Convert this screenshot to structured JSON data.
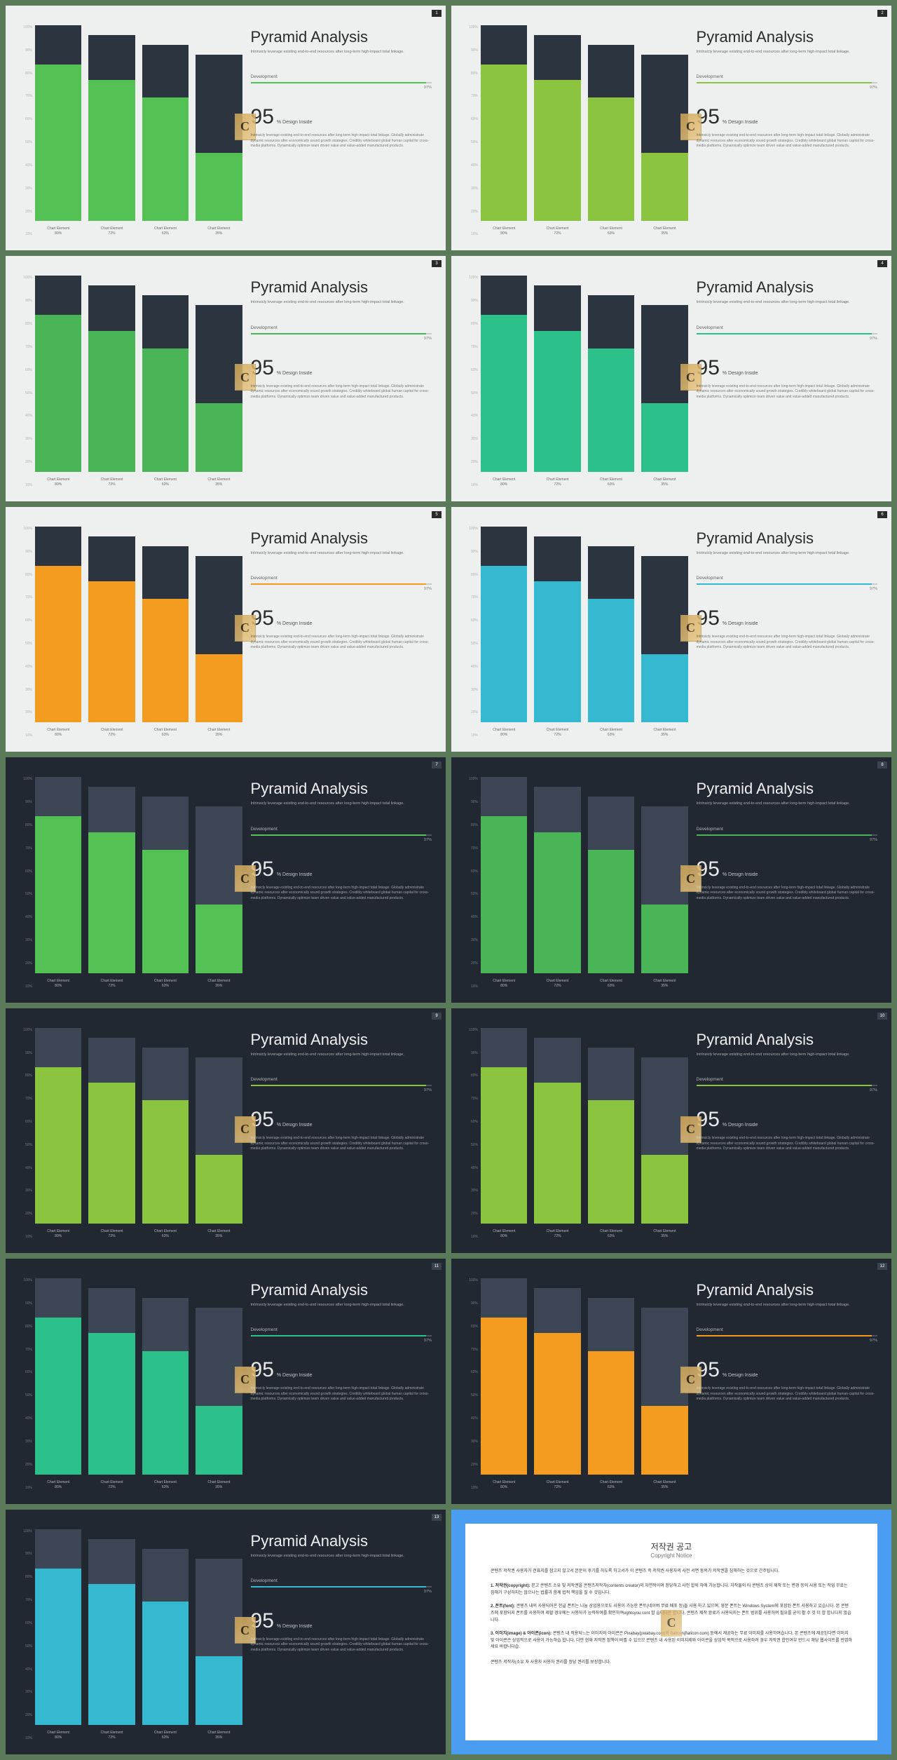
{
  "common": {
    "title": "Pyramid Analysis",
    "subtitle": "Intrinsicly leverage existing end-to-end resources after long-term high-impact total linkage.",
    "dev_label": "Development",
    "progress_pct": "97%",
    "progress_value": 97,
    "big_number": "95",
    "big_suffix": "% Design Inside",
    "body_text": "Intrinsicly leverage existing end-to-end resources after long-term high-impact total linkage. Globally administrate dynamic resources after economically sound growth strategies. Credibly whiteboard global human capital for cross-media platforms. Dynamically optimize team driven value and value-added manufactured products.",
    "yaxis_ticks": [
      "100%",
      "90%",
      "80%",
      "70%",
      "60%",
      "50%",
      "40%",
      "30%",
      "20%",
      "10%"
    ],
    "bars": [
      {
        "label": "Chart Element",
        "pct_label": "80%",
        "bg_height": 100,
        "fill_height": 80
      },
      {
        "label": "Chart Element",
        "pct_label": "72%",
        "bg_height": 95,
        "fill_height": 72
      },
      {
        "label": "Chart Element",
        "pct_label": "63%",
        "bg_height": 90,
        "fill_height": 63
      },
      {
        "label": "Chart Element",
        "pct_label": "35%",
        "bg_height": 85,
        "fill_height": 35
      }
    ],
    "watermark_letter": "C"
  },
  "slides": [
    {
      "theme": "light",
      "accent": "#54c154",
      "page": "1"
    },
    {
      "theme": "light",
      "accent": "#8bc53f",
      "page": "2"
    },
    {
      "theme": "light",
      "accent": "#4ab556",
      "page": "3"
    },
    {
      "theme": "light",
      "accent": "#2cc08b",
      "page": "4"
    },
    {
      "theme": "light",
      "accent": "#f39c1f",
      "page": "5"
    },
    {
      "theme": "light",
      "accent": "#34b9d1",
      "page": "6"
    },
    {
      "theme": "dark",
      "accent": "#54c154",
      "page": "7"
    },
    {
      "theme": "dark",
      "accent": "#4ab556",
      "page": "8"
    },
    {
      "theme": "dark",
      "accent": "#8bc53f",
      "page": "9"
    },
    {
      "theme": "dark",
      "accent": "#8bc53f",
      "page": "10"
    },
    {
      "theme": "dark",
      "accent": "#2cc08b",
      "page": "11"
    },
    {
      "theme": "dark",
      "accent": "#f39c1f",
      "page": "12"
    },
    {
      "theme": "dark",
      "accent": "#34b9d1",
      "page": "13"
    }
  ],
  "copyright": {
    "title_ko": "저작권 공고",
    "title_en": "Copyright Notice",
    "intro": "콘텐츠 저작권 사용자가 전표지를 참고지 않고서 본문이 후기를 하도록 하고서가 이 콘텐츠 즉 저작권 사용자의 사전 서면 동의가 저작권을 침해하는 것으로 간주됩니다.",
    "s1_title": "1. 저작권(copyright):",
    "s1_body": " 본고 콘텐츠 소유 및 저작권을 콘텐츠저작자(contents creator)의 자연적이며 정당하고 사전 합의 하에 가능합니다. 자작물의 타 콘텐츠 상의 제작 또는 변경 등의 사용 또는 작업 무료는 침해가 구성하지는 않으나는 법률과 함께 법적 책임을 질 수 것입니다.",
    "s2_title": "2. 폰트(font):",
    "s2_body": " 콘텐츠 내의 사용되어온 한글 폰트는 나눔 상업용으로도 사용이 가능한 폰트(네이버 무료 배포 등)들 사용 하고 있으며, 영문 폰트는 Windows System에 포함된 폰트 사용하고 있습니다. 본 콘텐츠에 포함되지 폰트를 사용하여 제할 경우에는 사용자가 능력하여를 확인하여ughtsyou cont 합 습니다은 합니다. 콘텐츠 제작 완료가 사용되지는 폰트 범위를 사용하여 필요를 굳이 활 수 것 더 합 합니다지 않습니다.",
    "s3_title": "3. 이미지(image) & 아이콘(icon):",
    "s3_body": " 콘텐츠 내 적용되느는 이미지와 아이콘은 Pixabay(pixabay.com)와 flaticon(flaticon.com) 등에서 제공하는 무료 이미지를 사용하여습니다. 본 콘텐츠에 제공된다면 이미지 및 아이콘은 상업적으로 사용이 가능하습 합니다. 다만 현재 저작권 정책이 바뀔 수 있으므 콘텐츠 내 사용된 이미지제와 아이콘을 상업적 목적으로 사용하려 경우 저작권 합인여부 반드시 해당 웹사이트를 번엽하세요 바랍니다습.",
    "footer": "콘텐츠 저작자(소유 자 사용자 사용자 권리를 정당 권리를 보장합니다."
  }
}
